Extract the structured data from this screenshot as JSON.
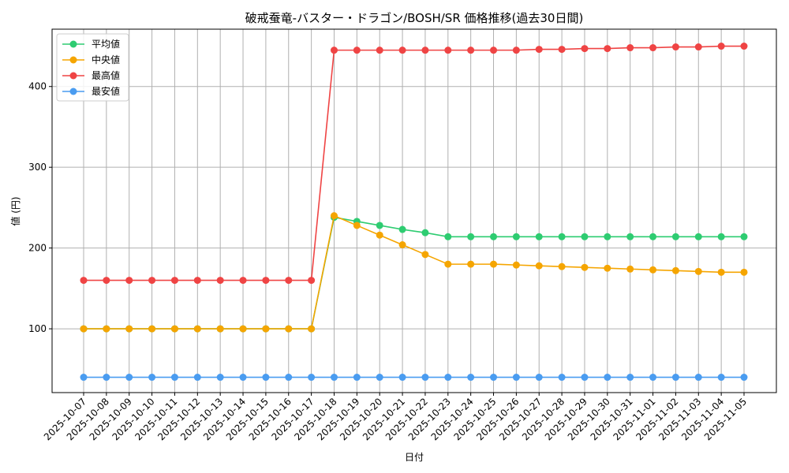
{
  "chart_data": {
    "type": "line",
    "title": "破戒蚕竜-バスター・ドラゴン/BOSH/SR 価格推移(過去30日間)",
    "xlabel": "日付",
    "ylabel": "値 (円)",
    "ylim": [
      21,
      471
    ],
    "yticks": [
      100,
      200,
      300,
      400
    ],
    "grid": true,
    "legend_position": "top-left",
    "categories": [
      "2025-10-07",
      "2025-10-08",
      "2025-10-09",
      "2025-10-10",
      "2025-10-11",
      "2025-10-12",
      "2025-10-13",
      "2025-10-14",
      "2025-10-15",
      "2025-10-16",
      "2025-10-17",
      "2025-10-18",
      "2025-10-19",
      "2025-10-20",
      "2025-10-21",
      "2025-10-22",
      "2025-10-23",
      "2025-10-24",
      "2025-10-25",
      "2025-10-26",
      "2025-10-27",
      "2025-10-28",
      "2025-10-29",
      "2025-10-30",
      "2025-10-31",
      "2025-11-01",
      "2025-11-02",
      "2025-11-03",
      "2025-11-04",
      "2025-11-05"
    ],
    "series": [
      {
        "name": "平均値",
        "color": "#2ecc71",
        "values": [
          100,
          100,
          100,
          100,
          100,
          100,
          100,
          100,
          100,
          100,
          100,
          238,
          233,
          228,
          223,
          219,
          214,
          214,
          214,
          214,
          214,
          214,
          214,
          214,
          214,
          214,
          214,
          214,
          214,
          214
        ]
      },
      {
        "name": "中央値",
        "color": "#f5a500",
        "values": [
          100,
          100,
          100,
          100,
          100,
          100,
          100,
          100,
          100,
          100,
          100,
          240,
          228,
          216,
          204,
          192,
          180,
          180,
          180,
          179,
          178,
          177,
          176,
          175,
          174,
          173,
          172,
          171,
          170,
          170
        ]
      },
      {
        "name": "最高値",
        "color": "#ef4444",
        "values": [
          160,
          160,
          160,
          160,
          160,
          160,
          160,
          160,
          160,
          160,
          160,
          445,
          445,
          445,
          445,
          445,
          445,
          445,
          445,
          445,
          446,
          446,
          447,
          447,
          448,
          448,
          449,
          449,
          450,
          450
        ]
      },
      {
        "name": "最安値",
        "color": "#4a9cf0",
        "values": [
          40,
          40,
          40,
          40,
          40,
          40,
          40,
          40,
          40,
          40,
          40,
          40,
          40,
          40,
          40,
          40,
          40,
          40,
          40,
          40,
          40,
          40,
          40,
          40,
          40,
          40,
          40,
          40,
          40,
          40
        ]
      }
    ]
  }
}
